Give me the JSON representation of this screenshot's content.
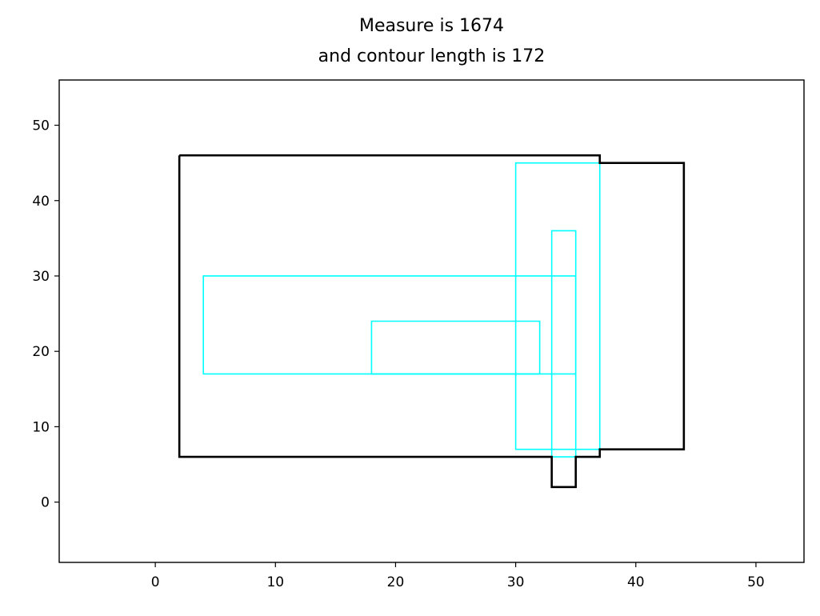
{
  "chart_data": {
    "type": "line",
    "title": [
      "Measure is 1674",
      "and contour length is 172"
    ],
    "xlim": [
      -8,
      54
    ],
    "ylim": [
      -8,
      56
    ],
    "xticks": [
      0,
      10,
      20,
      30,
      40,
      50
    ],
    "yticks": [
      0,
      10,
      20,
      30,
      40,
      50
    ],
    "grid": false,
    "colors": {
      "contour": "#000000",
      "rectangles": "#00ffff"
    },
    "contour": [
      [
        2,
        46
      ],
      [
        37,
        46
      ],
      [
        37,
        45
      ],
      [
        44,
        45
      ],
      [
        44,
        7
      ],
      [
        37,
        7
      ],
      [
        37,
        6
      ],
      [
        35,
        6
      ],
      [
        35,
        2
      ],
      [
        33,
        2
      ],
      [
        33,
        6
      ],
      [
        2,
        6
      ],
      [
        2,
        46
      ]
    ],
    "rectangles": [
      [
        [
          30,
          7
        ],
        [
          37,
          7
        ],
        [
          37,
          45
        ],
        [
          30,
          45
        ]
      ],
      [
        [
          33,
          6
        ],
        [
          35,
          6
        ],
        [
          35,
          36
        ],
        [
          33,
          36
        ]
      ],
      [
        [
          4,
          17
        ],
        [
          35,
          17
        ],
        [
          35,
          30
        ],
        [
          4,
          30
        ]
      ],
      [
        [
          18,
          17
        ],
        [
          32,
          17
        ],
        [
          32,
          24
        ],
        [
          18,
          24
        ]
      ]
    ]
  }
}
